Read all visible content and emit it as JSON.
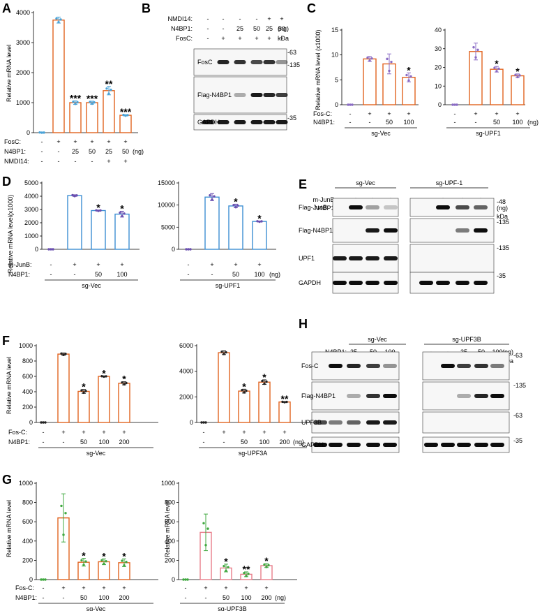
{
  "panels": {
    "A": {
      "letter": "A",
      "chart_data": {
        "type": "bar",
        "ylabel": "Relative mRNA level",
        "ylim": [
          0,
          4000
        ],
        "yticks": [
          "0",
          "1000",
          "2000",
          "3000",
          "4000"
        ],
        "values": [
          0,
          3750,
          1000,
          1000,
          1400,
          580
        ],
        "errors": [
          15,
          100,
          60,
          50,
          140,
          20
        ],
        "stars": [
          "",
          "",
          "***",
          "***",
          "**",
          "***"
        ],
        "bar_color": "#e2631f",
        "point_color": "#4aa3d8",
        "rows": [
          {
            "label": "FosC:",
            "cells": [
              "-",
              "+",
              "+",
              "+",
              "+",
              "+"
            ]
          },
          {
            "label": "N4BP1:",
            "cells": [
              "-",
              "-",
              "25",
              "50",
              "25",
              "50"
            ],
            "unit": "(ng)"
          },
          {
            "label": "NMDI14:",
            "cells": [
              "-",
              "-",
              "-",
              "-",
              "+",
              "+"
            ]
          }
        ]
      }
    },
    "B": {
      "letter": "B",
      "rows": [
        {
          "label": "NMDI14:",
          "cells": [
            "-",
            "-",
            "-",
            "-",
            "+",
            "+"
          ]
        },
        {
          "label": "N4BP1:",
          "cells": [
            "-",
            "-",
            "25",
            "50",
            "25",
            "50"
          ],
          "unit": "(ng)"
        },
        {
          "label": "FosC:",
          "cells": [
            "-",
            "+",
            "+",
            "+",
            "+",
            "+"
          ],
          "unit": "kDa"
        }
      ],
      "blots": [
        {
          "name": "FosC",
          "mw": [
            "-63",
            "-135"
          ]
        },
        {
          "name": "Flag-N4BP1",
          "mw": []
        },
        {
          "name": "GAPDH",
          "mw": [
            "-35"
          ]
        }
      ]
    },
    "C": {
      "letter": "C",
      "ylabel": "Relative mRNA level (x1000)",
      "charts": [
        {
          "chart_data": {
            "type": "bar",
            "ylim": [
              0,
              15
            ],
            "yticks": [
              "0",
              "5",
              "10",
              "15"
            ],
            "values": [
              0,
              9.2,
              8.2,
              5.5
            ],
            "errors": [
              0,
              0.5,
              2,
              0.9
            ],
            "stars": [
              "",
              "",
              "",
              "*"
            ],
            "bar_color": "#e2631f",
            "point_color": "#8a6bc4",
            "rows": [
              {
                "label": "Fos-C:",
                "cells": [
                  "-",
                  "+",
                  "+",
                  "+"
                ]
              },
              {
                "label": "N4BP1:",
                "cells": [
                  "-",
                  "-",
                  "50",
                  "100"
                ]
              }
            ],
            "group": "sg-Vec"
          }
        },
        {
          "chart_data": {
            "type": "bar",
            "ylim": [
              0,
              40
            ],
            "yticks": [
              "0",
              "10",
              "20",
              "30",
              "40"
            ],
            "values": [
              0,
              28.5,
              19,
              15.5
            ],
            "errors": [
              0,
              4.5,
              1.5,
              1
            ],
            "stars": [
              "",
              "",
              "*",
              "*"
            ],
            "bar_color": "#e2631f",
            "point_color": "#8a6bc4",
            "rows": [
              {
                "label": "",
                "cells": [
                  "-",
                  "+",
                  "+",
                  "+"
                ]
              },
              {
                "label": "",
                "cells": [
                  "-",
                  "-",
                  "50",
                  "100"
                ],
                "unit": "(ng)"
              }
            ],
            "group": "sg-UPF1"
          }
        }
      ]
    },
    "D": {
      "letter": "D",
      "ylabel": "Relative mRNA level(x1000)",
      "charts": [
        {
          "chart_data": {
            "type": "bar",
            "ylim": [
              0,
              5000
            ],
            "yticks": [
              "0",
              "1000",
              "2000",
              "3000",
              "4000",
              "5000"
            ],
            "values": [
              0,
              4050,
              2920,
              2650
            ],
            "errors": [
              0,
              60,
              40,
              220
            ],
            "stars": [
              "",
              "",
              "*",
              "*"
            ],
            "bar_color": "#3d8fd3",
            "point_color": "#6a4fb0",
            "rows": [
              {
                "label": "m-JunB:",
                "cells": [
                  "-",
                  "+",
                  "+",
                  "+"
                ]
              },
              {
                "label": "N4BP1:",
                "cells": [
                  "-",
                  "-",
                  "50",
                  "100"
                ]
              }
            ],
            "group": "sg-Vec"
          }
        },
        {
          "chart_data": {
            "type": "bar",
            "ylim": [
              0,
              15000
            ],
            "yticks": [
              "0",
              "5000",
              "10000",
              "15000"
            ],
            "values": [
              0,
              11800,
              9800,
              6300
            ],
            "errors": [
              0,
              800,
              400,
              100
            ],
            "stars": [
              "",
              "",
              "*",
              "*"
            ],
            "bar_color": "#3d8fd3",
            "point_color": "#6a4fb0",
            "rows": [
              {
                "label": "",
                "cells": [
                  "-",
                  "+",
                  "+",
                  "+"
                ]
              },
              {
                "label": "",
                "cells": [
                  "-",
                  "-",
                  "50",
                  "100"
                ],
                "unit": "(ng)"
              }
            ],
            "group": "sg-UPF1"
          }
        }
      ]
    },
    "E": {
      "letter": "E",
      "groups": [
        "sg-Vec",
        "sg-UPF-1"
      ],
      "rows": [
        {
          "label": "m-JunB:",
          "cells": [
            "-",
            "+",
            "+",
            "+",
            "-",
            "+",
            "+",
            "+"
          ]
        },
        {
          "label": "N4BP1:",
          "cells": [
            "-",
            "-",
            "50",
            "100",
            "-",
            "-",
            "50",
            "100"
          ],
          "unit": "(ng)"
        }
      ],
      "kda": "kDa",
      "blots": [
        {
          "name": "Flag-JunB",
          "mw": "-48"
        },
        {
          "name": "Flag-N4BP1",
          "mw": "-135"
        },
        {
          "name": "UPF1",
          "mw": "-135"
        },
        {
          "name": "GAPDH",
          "mw": "-35"
        }
      ]
    },
    "F": {
      "letter": "F",
      "ylabel": "Relative mRNA level",
      "charts": [
        {
          "chart_data": {
            "type": "bar",
            "ylim": [
              0,
              1000
            ],
            "yticks": [
              "0",
              "200",
              "400",
              "600",
              "800",
              "1000"
            ],
            "values": [
              0,
              890,
              405,
              600,
              510
            ],
            "errors": [
              0,
              15,
              25,
              5,
              20
            ],
            "stars": [
              "",
              "",
              "*",
              "*",
              "*"
            ],
            "bar_color": "#e2631f",
            "point_color": "#222222",
            "rows": [
              {
                "label": "Fos-C:",
                "cells": [
                  "-",
                  "+",
                  "+",
                  "+",
                  "+"
                ]
              },
              {
                "label": "N4BP1:",
                "cells": [
                  "-",
                  "-",
                  "50",
                  "100",
                  "200"
                ]
              }
            ],
            "group": "sg-Vec"
          }
        },
        {
          "chart_data": {
            "type": "bar",
            "ylim": [
              0,
              6000
            ],
            "yticks": [
              "0",
              "2000",
              "4000",
              "6000"
            ],
            "values": [
              0,
              5450,
              2450,
              3150,
              1600
            ],
            "errors": [
              0,
              150,
              150,
              180,
              30
            ],
            "stars": [
              "",
              "",
              "*",
              "*",
              "**"
            ],
            "bar_color": "#e2631f",
            "point_color": "#222222",
            "rows": [
              {
                "label": "",
                "cells": [
                  "-",
                  "+",
                  "+",
                  "+",
                  "+"
                ]
              },
              {
                "label": "",
                "cells": [
                  "-",
                  "-",
                  "50",
                  "100",
                  "200"
                ],
                "unit": "(ng)"
              }
            ],
            "group": "sg-UPF3A"
          }
        }
      ]
    },
    "G": {
      "letter": "G",
      "ylabel": "Relative mRNA level",
      "charts": [
        {
          "chart_data": {
            "type": "bar",
            "ylim": [
              0,
              1000
            ],
            "yticks": [
              "0",
              "200",
              "400",
              "600",
              "800",
              "1000"
            ],
            "values": [
              0,
              640,
              180,
              185,
              175
            ],
            "errors": [
              0,
              250,
              40,
              30,
              40
            ],
            "stars": [
              "",
              "",
              "*",
              "*",
              "*"
            ],
            "bar_color": "#e2631f",
            "point_color": "#3fa83f",
            "rows": [
              {
                "label": "Fos-C:",
                "cells": [
                  "-",
                  "+",
                  "+",
                  "+",
                  "+"
                ]
              },
              {
                "label": "N4BP1:",
                "cells": [
                  "-",
                  "-",
                  "50",
                  "100",
                  "200"
                ]
              }
            ],
            "group": "sg-Vec"
          }
        },
        {
          "chart_data": {
            "type": "bar",
            "ylim": [
              0,
              1000
            ],
            "yticks": [
              "0",
              "200",
              "400",
              "600",
              "800",
              "1000"
            ],
            "values": [
              0,
              490,
              120,
              55,
              145
            ],
            "errors": [
              0,
              190,
              40,
              25,
              20
            ],
            "stars": [
              "",
              "",
              "*",
              "**",
              "*"
            ],
            "bar_color": "#e87d8a",
            "point_color": "#3fa83f",
            "rows": [
              {
                "label": "",
                "cells": [
                  "-",
                  "+",
                  "+",
                  "+",
                  "+"
                ]
              },
              {
                "label": "",
                "cells": [
                  "-",
                  "-",
                  "50",
                  "100",
                  "200"
                ],
                "unit": "(ng)"
              }
            ],
            "group": "sg-UPF3B"
          }
        }
      ]
    },
    "H": {
      "letter": "H",
      "groups": [
        "sg-Vec",
        "sg-UPF3B"
      ],
      "rows": [
        {
          "label": "N4BP1:",
          "cells": [
            "-",
            "-",
            "25",
            "50",
            "100",
            "-",
            "-",
            "25",
            "50",
            "100"
          ],
          "unit": "(ng)"
        },
        {
          "label": "Fos-C:",
          "cells": [
            "-",
            "+",
            "+",
            "+",
            "+",
            "-",
            "+",
            "+",
            "+",
            "+"
          ],
          "unit": "kDa"
        }
      ],
      "blots": [
        {
          "name": "Fos-C",
          "mw": "-63"
        },
        {
          "name": "Flag-N4BP1",
          "mw": "-135"
        },
        {
          "name": "UPF3B",
          "mw": "-63"
        },
        {
          "name": "GAPDH",
          "mw": "-35"
        }
      ]
    }
  }
}
